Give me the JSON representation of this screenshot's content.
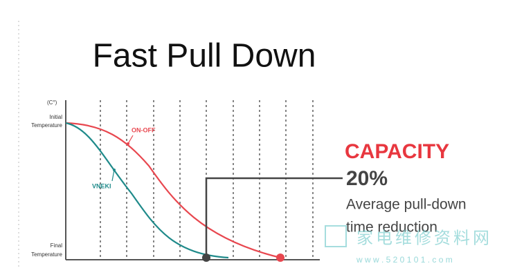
{
  "title": "Fast Pull Down",
  "chart": {
    "unit": "(C°)",
    "initial_label": [
      "Initial",
      "Temperature"
    ],
    "final_label": [
      "Final",
      "Temperature"
    ],
    "curves": [
      {
        "name": "ON-OFF",
        "color": "#e8474f"
      },
      {
        "name": "VNEKI",
        "color": "#1f8a8a"
      }
    ]
  },
  "callout": {
    "heading": "CAPACITY",
    "figure": "20%",
    "text": [
      "Average pull-down",
      "time reduction"
    ]
  },
  "watermark": {
    "name": "家电维修资料网",
    "url": "w w w . 5 2 0 1 0 1 . c o m"
  }
}
